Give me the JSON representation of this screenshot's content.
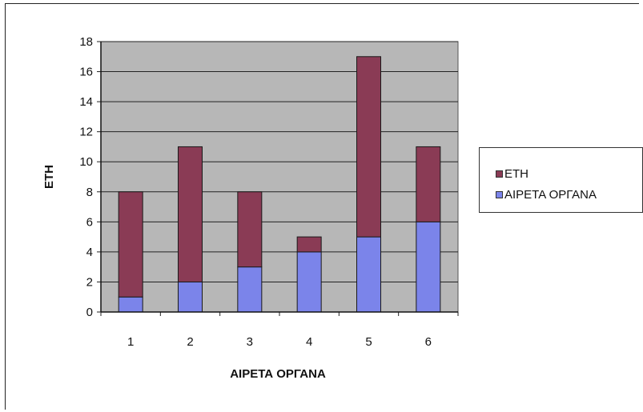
{
  "chart_data": {
    "type": "bar",
    "stacked": true,
    "categories": [
      "1",
      "2",
      "3",
      "4",
      "5",
      "6"
    ],
    "series": [
      {
        "name": "ΑΙΡΕΤΑ ΟΡΓΑΝΑ",
        "values": [
          1,
          2,
          3,
          4,
          5,
          6
        ],
        "color": "#7b84ea"
      },
      {
        "name": "ΕΤΗ",
        "values": [
          7,
          9,
          5,
          1,
          12,
          5
        ],
        "color": "#8a3b55"
      }
    ],
    "xlabel": "ΑΙΡΕΤΑ ΟΡΓΑΝΑ",
    "ylabel": "ΕΤΗ",
    "ylim": [
      0,
      18
    ],
    "yticks": [
      "0",
      "2",
      "4",
      "6",
      "8",
      "10",
      "12",
      "14",
      "16",
      "18"
    ],
    "grid": true,
    "plot_background": "#b7b7b7",
    "legend_position": "right",
    "legend": [
      {
        "label": "ΕΤΗ",
        "color": "#8a3b55"
      },
      {
        "label": "ΑΙΡΕΤΑ ΟΡΓΑΝΑ",
        "color": "#7b84ea"
      }
    ]
  }
}
